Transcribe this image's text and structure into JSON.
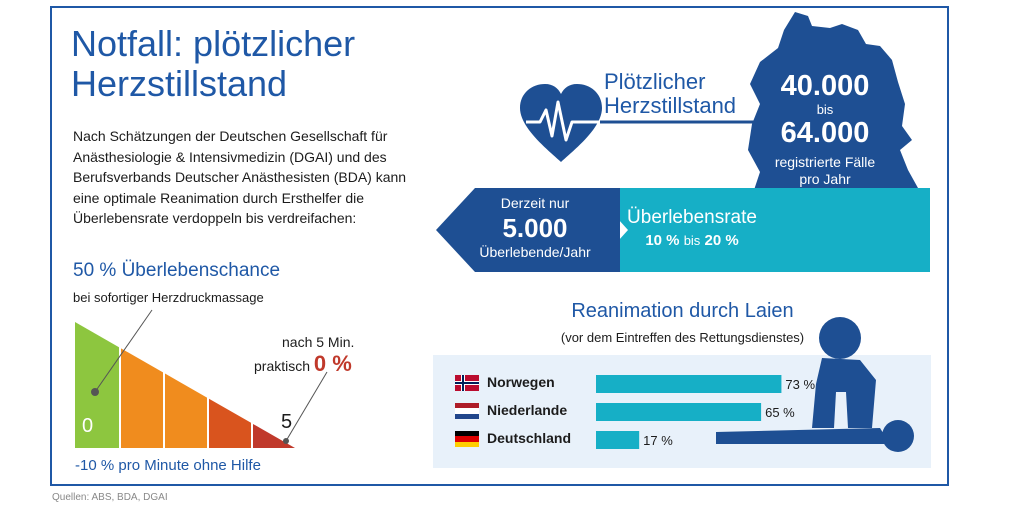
{
  "title": "Notfall: plötzlicher Herzstillstand",
  "intro": "Nach Schätzungen der Deutschen Gesellschaft für Anästhesiologie & Intensivmedizin (DGAI) und des Berufsverbands Deutscher Anästhesisten (BDA) kann eine optimale Reanimation durch Ersthelfer die Überlebensrate verdoppeln bis verdreifachen:",
  "survival_chance": {
    "heading": "50 % Überlebenschance",
    "sub": "bei sofortiger Herzdruckmassage"
  },
  "after_5_min": {
    "line1": "nach 5 Min.",
    "line2": "praktisch",
    "value": "0 %"
  },
  "per_minute": "-10 % pro Minute ohne Hilfe",
  "sources": "Quellen: ABS, BDA, DGAI",
  "cardiac_arrest": {
    "label": "Plötzlicher Herzstillstand",
    "min": "40.000",
    "connector": "bis",
    "max": "64.000",
    "desc_line1": "registrierte Fälle",
    "desc_line2": "pro Jahr"
  },
  "survivors": {
    "line1": "Derzeit nur",
    "value": "5.000",
    "line3": "Überlebende/Jahr"
  },
  "survival_rate": {
    "label": "Überlebensrate",
    "from": "10 %",
    "connector": "bis",
    "to": "20 %"
  },
  "lay_resuscitation": {
    "heading": "Reanimation durch Laien",
    "sub": "(vor dem Eintreffen des Rettungsdienstes)"
  },
  "colors": {
    "blue": "#1f58a6",
    "dark_blue": "#1e4f93",
    "cyan": "#16afc6",
    "green": "#8dc63f",
    "orange": "#f08c1e",
    "red": "#c0392b"
  },
  "chart_data": [
    {
      "type": "area",
      "title": "50 % Überlebenschance",
      "xlabel": "-10 % pro Minute ohne Hilfe",
      "x": [
        0,
        1,
        2,
        3,
        4,
        5
      ],
      "values": [
        50,
        40,
        30,
        20,
        10,
        0
      ],
      "tick_labels": [
        "0",
        "5"
      ],
      "ylim": [
        0,
        50
      ]
    },
    {
      "type": "bar",
      "title": "Reanimation durch Laien",
      "subtitle": "(vor dem Eintreffen des Rettungsdienstes)",
      "categories": [
        "Norwegen",
        "Niederlande",
        "Deutschland"
      ],
      "values": [
        73,
        65,
        17
      ],
      "value_labels": [
        "73 %",
        "65 %",
        "17 %"
      ],
      "xlim": [
        0,
        100
      ]
    }
  ]
}
